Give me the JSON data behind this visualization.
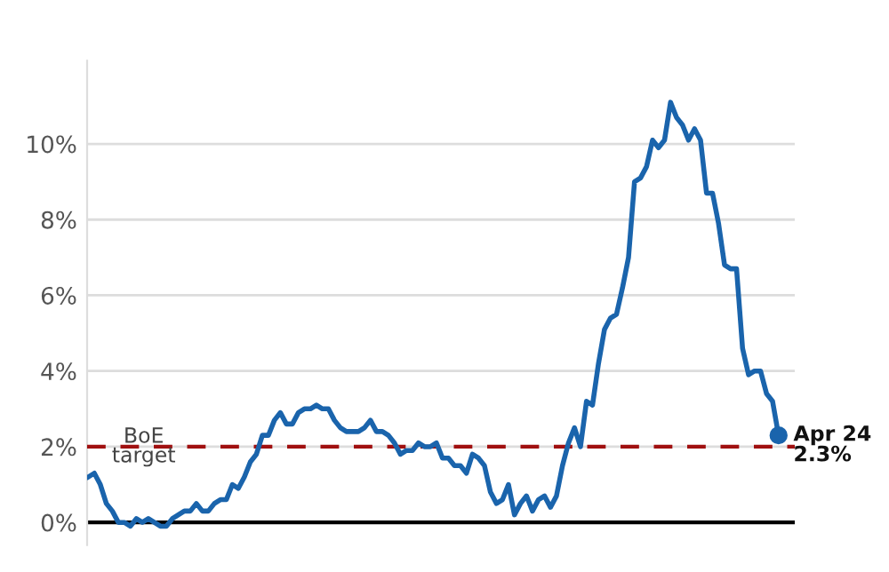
{
  "chart_data": {
    "type": "line",
    "categories": [
      null,
      null,
      null,
      null,
      null,
      null,
      null,
      null,
      null,
      null,
      null,
      null,
      null,
      null,
      null,
      null,
      null,
      null,
      null,
      null,
      null,
      null,
      null,
      null,
      null,
      null,
      null,
      null,
      null,
      null,
      null,
      null,
      null,
      null,
      null,
      null,
      null,
      null,
      null,
      null,
      null,
      null,
      null,
      null,
      null,
      null,
      null,
      null,
      null,
      null,
      null,
      null,
      null,
      null,
      null,
      null,
      null,
      null,
      null,
      null,
      null,
      null,
      null,
      null,
      null,
      null,
      null,
      null,
      null,
      null,
      null,
      null,
      null,
      null,
      null,
      null,
      null,
      null,
      null,
      null,
      null,
      null,
      null,
      null,
      null,
      null,
      null,
      null,
      null,
      null,
      null,
      null,
      null,
      null,
      null,
      null,
      null,
      null,
      null,
      null,
      null,
      null,
      null,
      null,
      null,
      null,
      null,
      null,
      null,
      null,
      null,
      null,
      null,
      null,
      null,
      null
    ],
    "series": [
      {
        "color": "#1a64ac",
        "values": [
          1.2,
          1.3,
          1.0,
          0.5,
          0.3,
          0.0,
          0.0,
          -0.1,
          0.1,
          0.0,
          0.1,
          0.0,
          -0.1,
          -0.1,
          0.1,
          0.2,
          0.3,
          0.3,
          0.5,
          0.3,
          0.3,
          0.5,
          0.6,
          0.6,
          1.0,
          0.9,
          1.2,
          1.6,
          1.8,
          2.3,
          2.3,
          2.7,
          2.9,
          2.6,
          2.6,
          2.9,
          3.0,
          3.0,
          3.1,
          3.0,
          3.0,
          2.7,
          2.5,
          2.4,
          2.4,
          2.4,
          2.5,
          2.7,
          2.4,
          2.4,
          2.3,
          2.1,
          1.8,
          1.9,
          1.9,
          2.1,
          2.0,
          2.0,
          2.1,
          1.7,
          1.7,
          1.5,
          1.5,
          1.3,
          1.8,
          1.7,
          1.5,
          0.8,
          0.5,
          0.6,
          1.0,
          0.2,
          0.5,
          0.7,
          0.3,
          0.6,
          0.7,
          0.4,
          0.7,
          1.5,
          2.1,
          2.5,
          2.0,
          3.2,
          3.1,
          4.2,
          5.1,
          5.4,
          5.5,
          6.2,
          7.0,
          9.0,
          9.1,
          9.4,
          10.1,
          9.9,
          10.1,
          11.1,
          10.7,
          10.5,
          10.1,
          10.4,
          10.1,
          8.7,
          8.7,
          7.9,
          6.8,
          6.7,
          6.7,
          4.6,
          3.9,
          4.0,
          4.0,
          3.4,
          3.2,
          2.3
        ]
      },
      {
        "type": "scatter",
        "color": "#1a64ac",
        "values": [
          null,
          null,
          null,
          null,
          null,
          null,
          null,
          null,
          null,
          null,
          null,
          null,
          null,
          null,
          null,
          null,
          null,
          null,
          null,
          null,
          null,
          null,
          null,
          null,
          null,
          null,
          null,
          null,
          null,
          null,
          null,
          null,
          null,
          null,
          null,
          null,
          null,
          null,
          null,
          null,
          null,
          null,
          null,
          null,
          null,
          null,
          null,
          null,
          null,
          null,
          null,
          null,
          null,
          null,
          null,
          null,
          null,
          null,
          null,
          null,
          null,
          null,
          null,
          null,
          null,
          null,
          null,
          null,
          null,
          null,
          null,
          null,
          null,
          null,
          null,
          null,
          null,
          null,
          null,
          null,
          null,
          null,
          null,
          null,
          null,
          null,
          null,
          null,
          null,
          null,
          null,
          null,
          null,
          null,
          null,
          null,
          null,
          null,
          null,
          null,
          null,
          null,
          null,
          null,
          null,
          null,
          null,
          null,
          null,
          null,
          null,
          null,
          null,
          null,
          null,
          2.3
        ]
      }
    ],
    "ylim": [
      -0.6,
      12.2
    ],
    "yticks": [
      {
        "value": 0,
        "label": "0%"
      },
      {
        "value": 2,
        "label": "2%"
      },
      {
        "value": 4,
        "label": "4%"
      },
      {
        "value": 6,
        "label": "6%"
      },
      {
        "value": 8,
        "label": "8%"
      },
      {
        "value": 10,
        "label": "10%"
      }
    ],
    "grid": "y",
    "tick_labels": "y",
    "ref_lines": [
      {
        "axis": "y",
        "value": 2,
        "label": "BoE\ntarget",
        "color": "#a01010",
        "line_style": "dashed"
      }
    ],
    "annotations": [
      "Apr 24\n2.3%"
    ]
  }
}
